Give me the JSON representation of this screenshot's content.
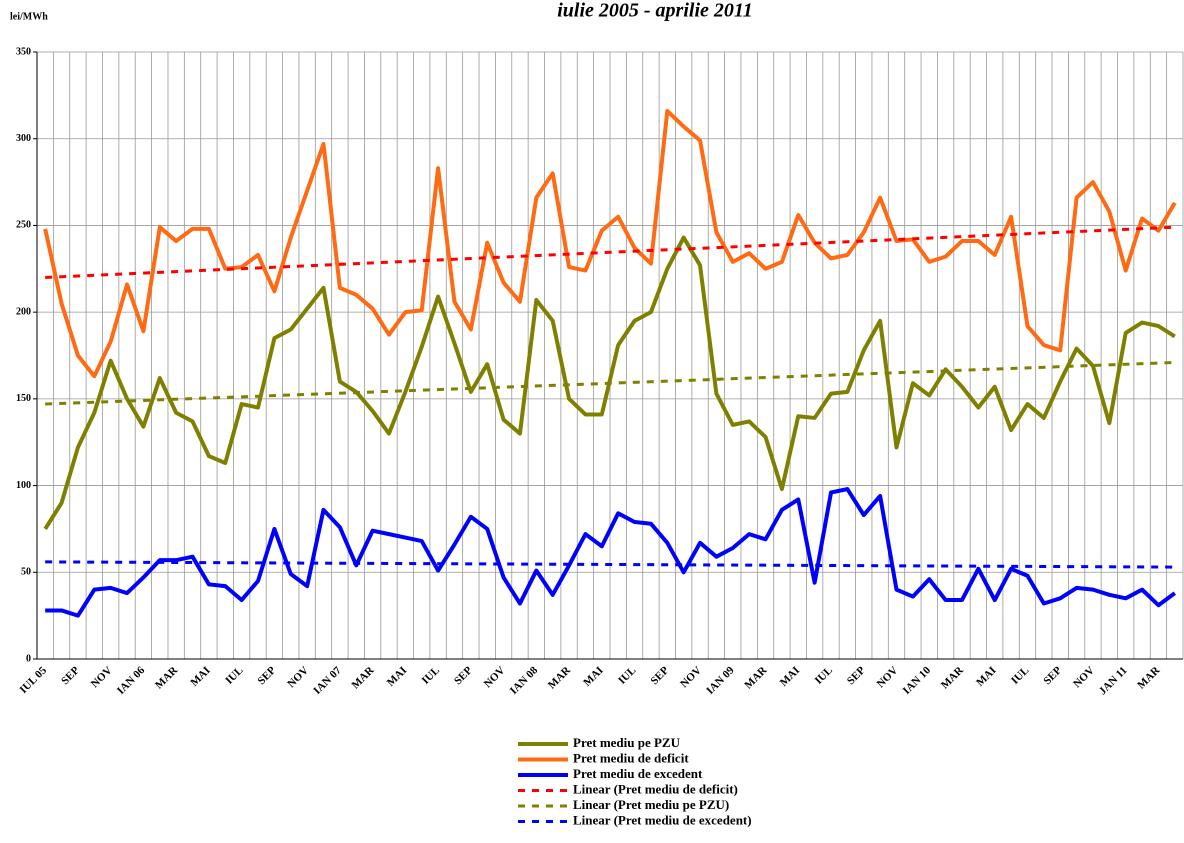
{
  "chart_data": {
    "type": "line",
    "title": "iulie 2005 - aprilie 2011",
    "y_label": "lei/MWh",
    "categories": [
      "IUL 05",
      null,
      "SEP",
      null,
      "NOV",
      null,
      "IAN 06",
      null,
      "MAR",
      null,
      "MAI",
      null,
      "IUL",
      null,
      "SEP",
      null,
      "NOV",
      null,
      "IAN 07",
      null,
      "MAR",
      null,
      "MAI",
      null,
      "IUL",
      null,
      "SEP",
      null,
      "NOV",
      null,
      "IAN 08",
      null,
      "MAR",
      null,
      "MAI",
      null,
      "IUL",
      null,
      "SEP",
      null,
      "NOV",
      null,
      "IAN 09",
      null,
      "MAR",
      null,
      "MAI",
      null,
      "IUL",
      null,
      "SEP",
      null,
      "NOV",
      null,
      "IAN 10",
      null,
      "MAR",
      null,
      "MAI",
      null,
      "IUL",
      null,
      "SEP",
      null,
      "NOV",
      null,
      "JAN 11",
      null,
      "MAR",
      null
    ],
    "series": [
      {
        "name": "Pret mediu pe PZU",
        "color": "#808000",
        "values": [
          75,
          90,
          122,
          142,
          172,
          150,
          134,
          162,
          142,
          137,
          117,
          113,
          147,
          145,
          185,
          190,
          202,
          214,
          160,
          154,
          143,
          130,
          154,
          180,
          209,
          182,
          154,
          170,
          138,
          130,
          207,
          195,
          150,
          141,
          141,
          181,
          195,
          200,
          225,
          243,
          227,
          153,
          135,
          137,
          128,
          98,
          140,
          139,
          153,
          154,
          178,
          195,
          122,
          159,
          152,
          167,
          157,
          145,
          157,
          132,
          147,
          139,
          160,
          179,
          169,
          136,
          188,
          194,
          192,
          186
        ]
      },
      {
        "name": "Pret mediu de deficit",
        "color": "#ff6a13",
        "values": [
          248,
          205,
          175,
          163,
          183,
          216,
          189,
          249,
          241,
          248,
          248,
          225,
          226,
          233,
          212,
          243,
          270,
          297,
          214,
          210,
          202,
          187,
          200,
          201,
          283,
          206,
          190,
          240,
          217,
          206,
          266,
          280,
          226,
          224,
          247,
          255,
          237,
          228,
          316,
          307,
          299,
          246,
          229,
          234,
          225,
          229,
          256,
          240,
          231,
          233,
          246,
          266,
          241,
          242,
          229,
          232,
          241,
          241,
          233,
          255,
          192,
          181,
          178,
          266,
          275,
          258,
          224,
          254,
          247,
          263
        ]
      },
      {
        "name": "Pret mediu de excedent",
        "color": "#0000ff",
        "values": [
          28,
          28,
          25,
          40,
          41,
          38,
          47,
          57,
          57,
          59,
          43,
          42,
          34,
          45,
          75,
          49,
          42,
          86,
          76,
          54,
          74,
          72,
          70,
          68,
          51,
          66,
          82,
          75,
          47,
          32,
          51,
          37,
          54,
          72,
          65,
          84,
          79,
          78,
          67,
          50,
          67,
          59,
          64,
          72,
          69,
          86,
          92,
          44,
          96,
          98,
          83,
          94,
          40,
          36,
          46,
          34,
          34,
          52,
          34,
          52,
          48,
          32,
          35,
          41,
          40,
          37,
          35,
          40,
          31,
          38
        ]
      }
    ],
    "trendlines": [
      {
        "name": "Linear (Pret mediu de deficit)",
        "color": "#ff0000",
        "values": [
          220,
          249
        ]
      },
      {
        "name": "Linear (Pret mediu pe PZU)",
        "color": "#808000",
        "values": [
          147,
          171
        ]
      },
      {
        "name": "Linear (Pret mediu de excedent)",
        "color": "#0000ff",
        "values": [
          56,
          53
        ]
      }
    ],
    "ylim": [
      0,
      350
    ],
    "yticks": [
      0,
      50,
      100,
      150,
      200,
      250,
      300,
      350
    ],
    "grid": true
  }
}
